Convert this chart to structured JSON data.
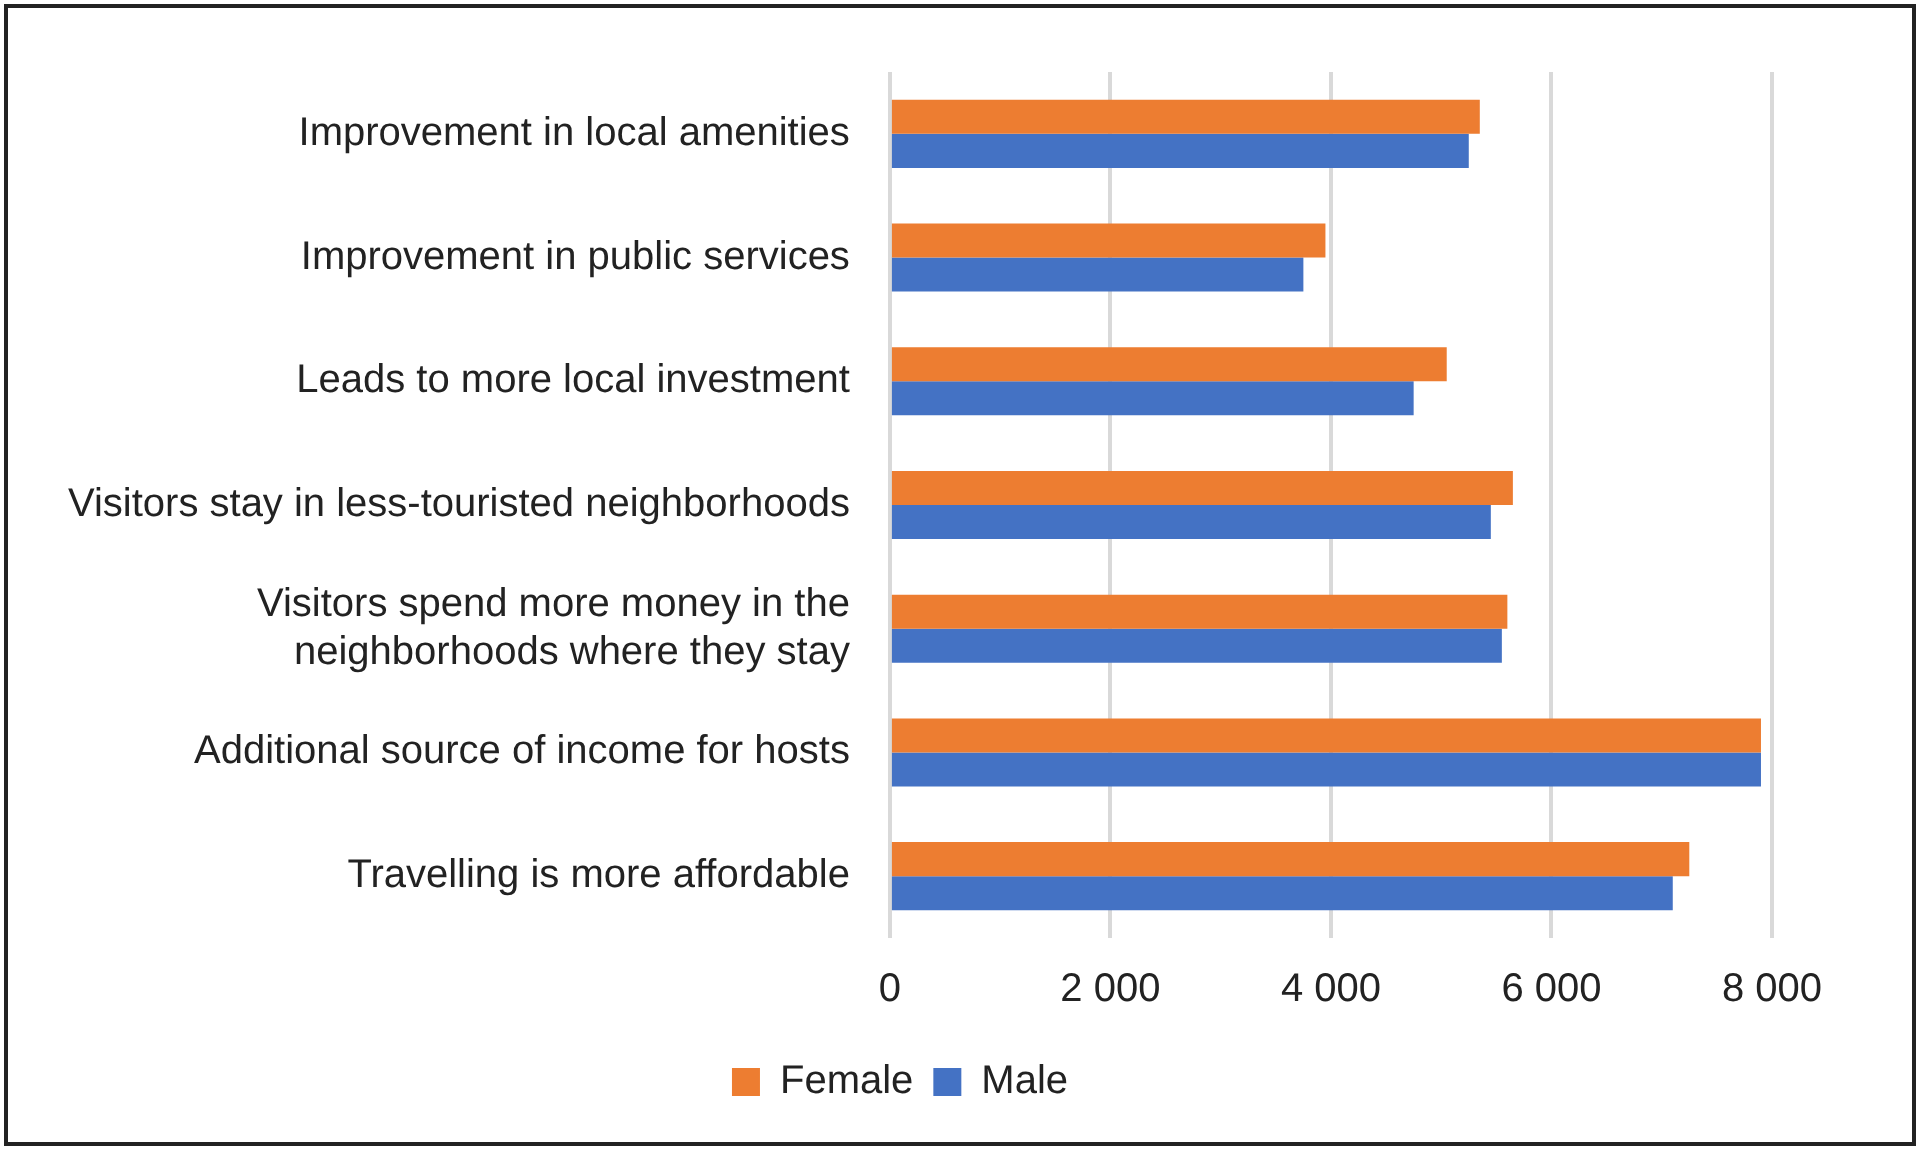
{
  "chart_data": {
    "type": "bar",
    "orientation": "horizontal",
    "categories": [
      "Improvement in local amenities",
      "Improvement in public services",
      "Leads to more local investment",
      "Visitors stay in less-touristed neighborhoods",
      "Visitors spend more money in the neighborhoods where they stay",
      "Additional source of income for hosts",
      "Travelling is more affordable"
    ],
    "series": [
      {
        "name": "Female",
        "color": "#ed7d31",
        "values": [
          5350,
          3950,
          5050,
          5650,
          5600,
          7900,
          7250
        ]
      },
      {
        "name": "Male",
        "color": "#4472c4",
        "values": [
          5250,
          3750,
          4750,
          5450,
          5550,
          7900,
          7100
        ]
      }
    ],
    "xlim": [
      0,
      8000
    ],
    "xticks": [
      {
        "value": 0,
        "label": "0"
      },
      {
        "value": 2000,
        "label": "2 000"
      },
      {
        "value": 4000,
        "label": "4 000"
      },
      {
        "value": 6000,
        "label": "6 000"
      },
      {
        "value": 8000,
        "label": "8 000"
      }
    ],
    "grid": "x",
    "legend": "bottom"
  }
}
